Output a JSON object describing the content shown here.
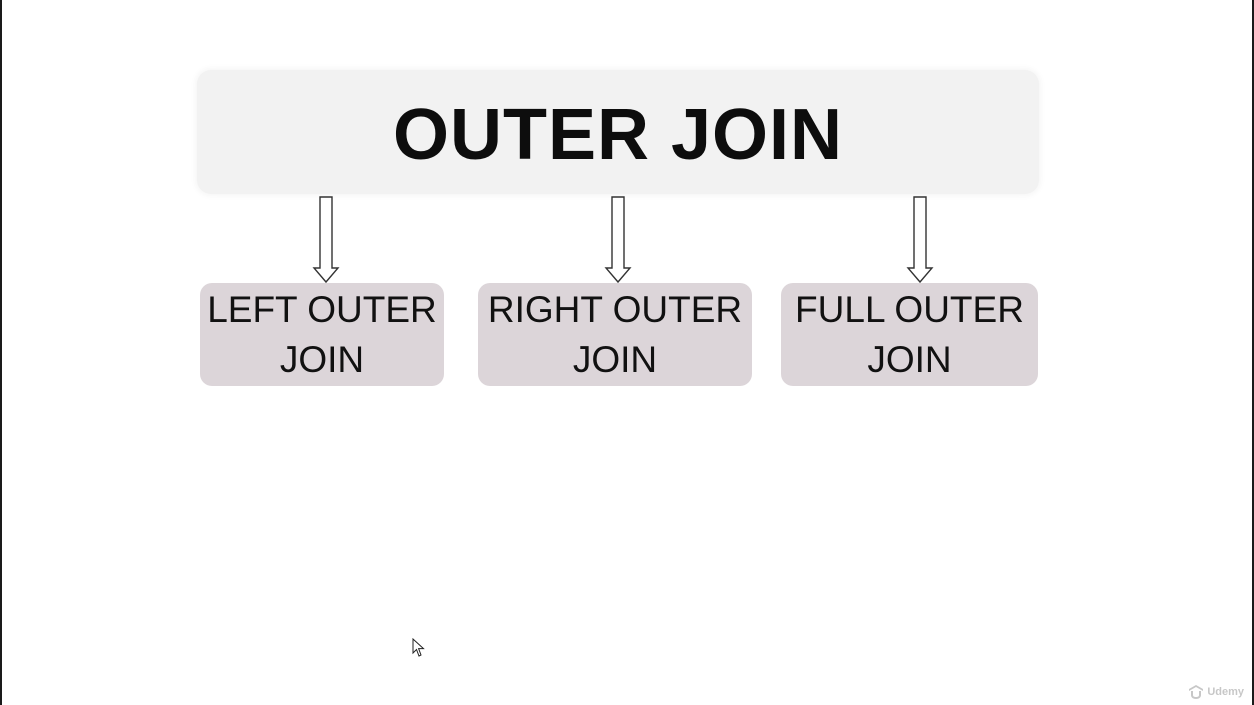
{
  "diagram": {
    "title": "OUTER JOIN",
    "children": [
      {
        "line1": "LEFT OUTER",
        "line2": "JOIN"
      },
      {
        "line1": "RIGHT OUTER",
        "line2": "JOIN"
      },
      {
        "line1": "FULL OUTER",
        "line2": "JOIN"
      }
    ]
  },
  "watermark": {
    "text": "Udemy",
    "icon": "udemy-logo-icon"
  },
  "colors": {
    "title_box": "#f2f2f2",
    "child_box": "#dcd5d9",
    "text": "#111111",
    "arrow_stroke": "#333333"
  }
}
